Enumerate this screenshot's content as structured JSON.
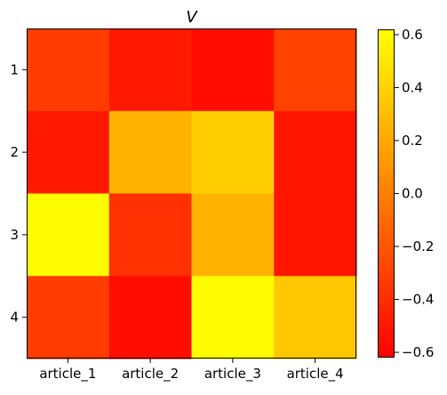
{
  "chart_data": {
    "type": "heatmap",
    "title": "V",
    "xlabel": "",
    "ylabel": "",
    "x_categories": [
      "article_1",
      "article_2",
      "article_3",
      "article_4"
    ],
    "y_categories": [
      "1",
      "2",
      "3",
      "4"
    ],
    "values": [
      [
        -0.33,
        -0.5,
        -0.55,
        -0.3
      ],
      [
        -0.5,
        0.25,
        0.38,
        -0.52
      ],
      [
        0.6,
        -0.38,
        0.25,
        -0.52
      ],
      [
        -0.33,
        -0.55,
        0.6,
        0.35
      ]
    ],
    "colorbar": {
      "colormap": "autumn",
      "vmin": -0.62,
      "vmax": 0.62,
      "ticks": [
        -0.6,
        -0.4,
        -0.2,
        0.0,
        0.2,
        0.4,
        0.6
      ],
      "tick_labels": [
        "−0.6",
        "−0.4",
        "−0.2",
        "0.0",
        "0.2",
        "0.4",
        "0.6"
      ]
    },
    "grid": false
  }
}
